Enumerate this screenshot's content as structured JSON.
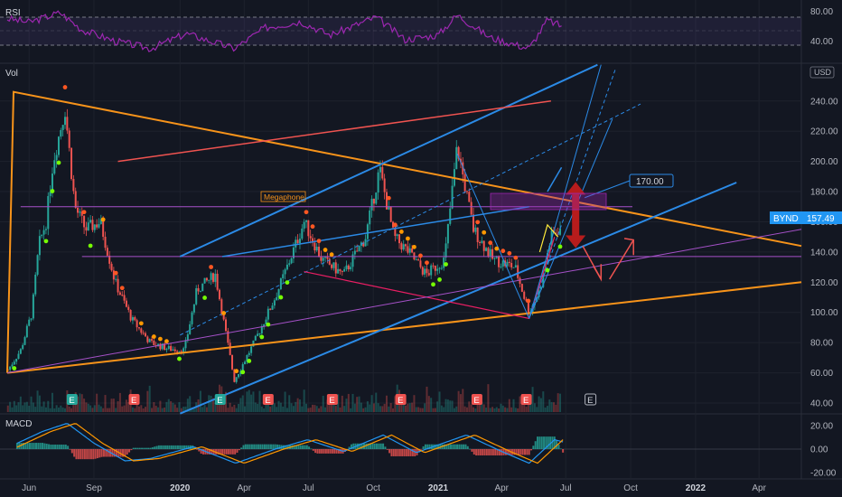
{
  "panes": {
    "rsi_title": "RSI",
    "vol_title": "Vol",
    "macd_title": "MACD",
    "currency": "USD"
  },
  "price_tag": {
    "symbol": "BYND",
    "value": "157.49",
    "color": "#2196f3"
  },
  "target_label": "170.00",
  "annotation_megaphone": "Megaphone",
  "colors": {
    "background": "#131722",
    "candle_up": "#26a69a",
    "candle_down": "#ef5350",
    "orange_lines": "#f7931a",
    "blue_lines": "#2b8ae6",
    "purple_lines": "#a651c9",
    "rsi_line": "#9c27b0",
    "macd_line": "#2196f3",
    "signal_line": "#ff9800",
    "target_arrow": "#b71c1c"
  },
  "earnings_marker": "E",
  "chart_data": {
    "type": "candlestick",
    "price_axis": {
      "ticks": [
        "240.00",
        "220.00",
        "200.00",
        "180.00",
        "160.00",
        "140.00",
        "120.00",
        "100.00",
        "80.00",
        "60.00",
        "40.00"
      ],
      "range": [
        40,
        262
      ]
    },
    "rsi_axis": {
      "ticks": [
        "80.00",
        "40.00"
      ],
      "range": [
        20,
        90
      ]
    },
    "macd_axis": {
      "ticks": [
        "20.00",
        "0.00",
        "-20.00"
      ],
      "range": [
        -25,
        28
      ]
    },
    "time_axis": [
      "Jun",
      "Sep",
      "2020",
      "Apr",
      "Jul",
      "Oct",
      "2021",
      "Apr",
      "Jul",
      "Oct",
      "2022",
      "Apr"
    ],
    "time_axis_bold": [
      "2020",
      "2021",
      "2022"
    ],
    "time_range": [
      "2019-05",
      "2022-05"
    ],
    "price_path": [
      [
        "2019-05-02",
        62
      ],
      [
        "2019-05-20",
        75
      ],
      [
        "2019-06-05",
        100
      ],
      [
        "2019-06-15",
        145
      ],
      [
        "2019-06-25",
        160
      ],
      [
        "2019-07-05",
        200
      ],
      [
        "2019-07-22",
        235
      ],
      [
        "2019-08-05",
        170
      ],
      [
        "2019-08-20",
        155
      ],
      [
        "2019-09-10",
        160
      ],
      [
        "2019-10-01",
        120
      ],
      [
        "2019-10-25",
        95
      ],
      [
        "2019-11-20",
        80
      ],
      [
        "2019-12-15",
        76
      ],
      [
        "2020-01-07",
        75
      ],
      [
        "2020-01-25",
        115
      ],
      [
        "2020-02-20",
        125
      ],
      [
        "2020-03-18",
        55
      ],
      [
        "2020-04-15",
        80
      ],
      [
        "2020-05-15",
        110
      ],
      [
        "2020-06-05",
        135
      ],
      [
        "2020-06-25",
        160
      ],
      [
        "2020-07-20",
        135
      ],
      [
        "2020-08-20",
        125
      ],
      [
        "2020-09-20",
        150
      ],
      [
        "2020-10-10",
        195
      ],
      [
        "2020-10-30",
        150
      ],
      [
        "2020-11-20",
        140
      ],
      [
        "2020-12-15",
        125
      ],
      [
        "2021-01-10",
        135
      ],
      [
        "2021-01-28",
        210
      ],
      [
        "2021-02-20",
        155
      ],
      [
        "2021-03-20",
        135
      ],
      [
        "2021-04-20",
        130
      ],
      [
        "2021-05-10",
        100
      ],
      [
        "2021-05-25",
        115
      ],
      [
        "2021-06-10",
        150
      ],
      [
        "2021-06-25",
        157
      ]
    ],
    "rsi_path": [
      [
        "2019-05-01",
        70
      ],
      [
        "2019-06-01",
        65
      ],
      [
        "2019-07-15",
        78
      ],
      [
        "2019-08-15",
        55
      ],
      [
        "2019-10-01",
        40
      ],
      [
        "2019-11-20",
        30
      ],
      [
        "2020-01-10",
        50
      ],
      [
        "2020-03-18",
        30
      ],
      [
        "2020-05-01",
        58
      ],
      [
        "2020-06-20",
        66
      ],
      [
        "2020-08-01",
        48
      ],
      [
        "2020-10-05",
        72
      ],
      [
        "2020-11-15",
        42
      ],
      [
        "2021-01-01",
        48
      ],
      [
        "2021-01-28",
        75
      ],
      [
        "2021-03-15",
        45
      ],
      [
        "2021-05-10",
        30
      ],
      [
        "2021-06-05",
        68
      ],
      [
        "2021-06-25",
        60
      ]
    ],
    "macd_path": [
      [
        "2019-05-15",
        5
      ],
      [
        "2019-06-20",
        15
      ],
      [
        "2019-07-25",
        22
      ],
      [
        "2019-09-01",
        5
      ],
      [
        "2019-10-15",
        -10
      ],
      [
        "2019-11-20",
        -8
      ],
      [
        "2020-01-20",
        2
      ],
      [
        "2020-03-20",
        -12
      ],
      [
        "2020-05-15",
        0
      ],
      [
        "2020-06-30",
        8
      ],
      [
        "2020-08-20",
        -2
      ],
      [
        "2020-10-15",
        12
      ],
      [
        "2020-12-01",
        -3
      ],
      [
        "2021-02-10",
        12
      ],
      [
        "2021-04-01",
        -2
      ],
      [
        "2021-05-10",
        -12
      ],
      [
        "2021-06-15",
        8
      ],
      [
        "2021-06-28",
        6
      ]
    ],
    "earnings_dates": [
      "2019-08-01",
      "2019-10-28",
      "2020-02-27",
      "2020-05-05",
      "2020-08-04",
      "2020-11-09",
      "2021-02-25",
      "2021-05-06"
    ],
    "earnings_upcoming": "2021-08-05",
    "horizontal_levels": [
      170,
      137
    ],
    "drawings": {
      "orange_triangle": [
        [
          "2019-05-01",
          60
        ],
        [
          "2019-05-10",
          246
        ],
        [
          "2022-05-31",
          144
        ],
        [
          "2022-05-31",
          120
        ]
      ],
      "blue_channel_lower": [
        [
          "2020-01-01",
          33
        ],
        [
          "2022-02-28",
          186
        ]
      ],
      "blue_channel_upper": [
        [
          "2020-01-01",
          137
        ],
        [
          "2021-08-15",
          264
        ]
      ],
      "pink_line": [
        [
          "2020-06-25",
          127
        ],
        [
          "2021-05-10",
          96
        ],
        [
          "2021-06-15",
          150
        ]
      ],
      "purple_line": [
        [
          "2019-05-01",
          60
        ],
        [
          "2022-05-31",
          155
        ]
      ],
      "target": [
        "2021-07-15",
        170
      ],
      "arrow_up_range": [
        145,
        184
      ]
    }
  }
}
